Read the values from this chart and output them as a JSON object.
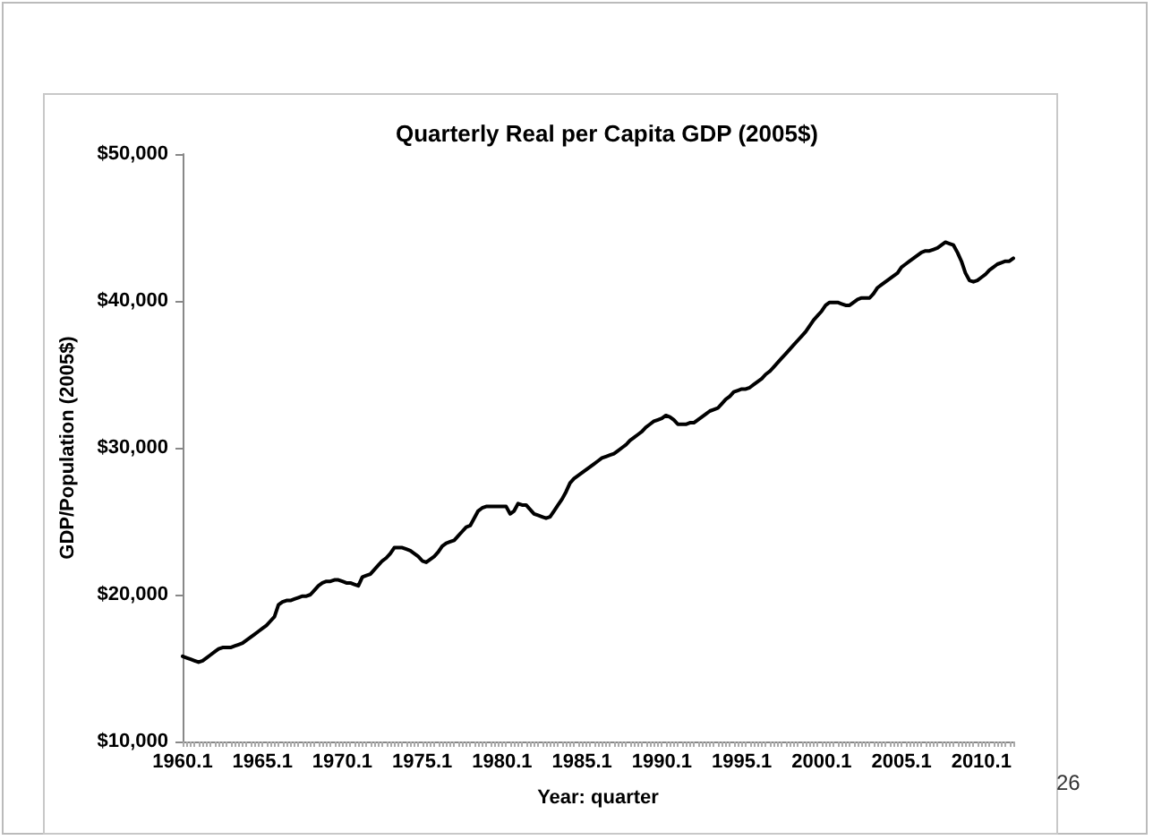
{
  "chart_data": {
    "type": "line",
    "title": "Quarterly Real per Capita GDP (2005$)",
    "xlabel": "Year: quarter",
    "ylabel": "GDP/Population (2005$)",
    "categories": [
      "1960.1",
      null,
      null,
      null,
      null,
      null,
      null,
      null,
      null,
      null,
      null,
      null,
      null,
      null,
      null,
      null,
      null,
      null,
      null,
      null,
      "1965.1",
      null,
      null,
      null,
      null,
      null,
      null,
      null,
      null,
      null,
      null,
      null,
      null,
      null,
      null,
      null,
      null,
      null,
      null,
      null,
      "1970.1",
      null,
      null,
      null,
      null,
      null,
      null,
      null,
      null,
      null,
      null,
      null,
      null,
      null,
      null,
      null,
      null,
      null,
      null,
      null,
      "1975.1",
      null,
      null,
      null,
      null,
      null,
      null,
      null,
      null,
      null,
      null,
      null,
      null,
      null,
      null,
      null,
      null,
      null,
      null,
      null,
      "1980.1",
      null,
      null,
      null,
      null,
      null,
      null,
      null,
      null,
      null,
      null,
      null,
      null,
      null,
      null,
      null,
      null,
      null,
      null,
      null,
      "1985.1",
      null,
      null,
      null,
      null,
      null,
      null,
      null,
      null,
      null,
      null,
      null,
      null,
      null,
      null,
      null,
      null,
      null,
      null,
      null,
      "1990.1",
      null,
      null,
      null,
      null,
      null,
      null,
      null,
      null,
      null,
      null,
      null,
      null,
      null,
      null,
      null,
      null,
      null,
      null,
      null,
      "1995.1",
      null,
      null,
      null,
      null,
      null,
      null,
      null,
      null,
      null,
      null,
      null,
      null,
      null,
      null,
      null,
      null,
      null,
      null,
      null,
      "2000.1",
      null,
      null,
      null,
      null,
      null,
      null,
      null,
      null,
      null,
      null,
      null,
      null,
      null,
      null,
      null,
      null,
      null,
      null,
      null,
      "2005.1",
      null,
      null,
      null,
      null,
      null,
      null,
      null,
      null,
      null,
      null,
      null,
      null,
      null,
      null,
      null,
      null,
      null,
      null,
      null,
      "2010.1",
      null,
      null,
      null,
      null,
      null,
      null,
      null,
      null
    ],
    "series": [
      {
        "color": "#000000",
        "values": [
          15800,
          15700,
          15600,
          15500,
          15400,
          15500,
          15700,
          15900,
          16100,
          16300,
          16400,
          16400,
          16400,
          16500,
          16600,
          16700,
          16900,
          17100,
          17300,
          17500,
          17700,
          17900,
          18200,
          18500,
          19300,
          19500,
          19600,
          19600,
          19700,
          19800,
          19900,
          19900,
          20000,
          20300,
          20600,
          20800,
          20900,
          20900,
          21000,
          21000,
          20900,
          20800,
          20800,
          20700,
          20600,
          21200,
          21300,
          21400,
          21700,
          22000,
          22300,
          22500,
          22800,
          23200,
          23200,
          23200,
          23100,
          23000,
          22800,
          22600,
          22300,
          22200,
          22400,
          22600,
          22900,
          23300,
          23500,
          23600,
          23700,
          24000,
          24300,
          24600,
          24700,
          25200,
          25700,
          25900,
          26000,
          26000,
          26000,
          26000,
          26000,
          26000,
          25500,
          25700,
          26200,
          26100,
          26100,
          25800,
          25500,
          25400,
          25300,
          25200,
          25300,
          25700,
          26100,
          26500,
          27000,
          27600,
          27900,
          28100,
          28300,
          28500,
          28700,
          28900,
          29100,
          29300,
          29400,
          29500,
          29600,
          29800,
          30000,
          30200,
          30500,
          30700,
          30900,
          31100,
          31400,
          31600,
          31800,
          31900,
          32000,
          32200,
          32100,
          31900,
          31600,
          31600,
          31600,
          31700,
          31700,
          31900,
          32100,
          32300,
          32500,
          32600,
          32700,
          33000,
          33300,
          33500,
          33800,
          33900,
          34000,
          34000,
          34100,
          34300,
          34500,
          34700,
          35000,
          35200,
          35500,
          35800,
          36100,
          36400,
          36700,
          37000,
          37300,
          37600,
          37900,
          38300,
          38700,
          39000,
          39300,
          39700,
          39900,
          39900,
          39900,
          39800,
          39700,
          39700,
          39900,
          40100,
          40200,
          40200,
          40200,
          40500,
          40900,
          41100,
          41300,
          41500,
          41700,
          41900,
          42300,
          42500,
          42700,
          42900,
          43100,
          43300,
          43400,
          43400,
          43500,
          43600,
          43800,
          44000,
          43900,
          43800,
          43300,
          42700,
          41900,
          41400,
          41300,
          41400,
          41600,
          41800,
          42100,
          42300,
          42500,
          42600,
          42700,
          42700,
          42900
        ]
      }
    ],
    "ylim": [
      10000,
      50000
    ],
    "yticks": [
      {
        "value": 10000,
        "label": "$10,000"
      },
      {
        "value": 20000,
        "label": "$20,000"
      },
      {
        "value": 30000,
        "label": "$30,000"
      },
      {
        "value": 40000,
        "label": "$40,000"
      },
      {
        "value": 50000,
        "label": "$50,000"
      }
    ],
    "annotations": [
      "26"
    ],
    "grid": false,
    "marker": "none",
    "line_style": "solid"
  }
}
